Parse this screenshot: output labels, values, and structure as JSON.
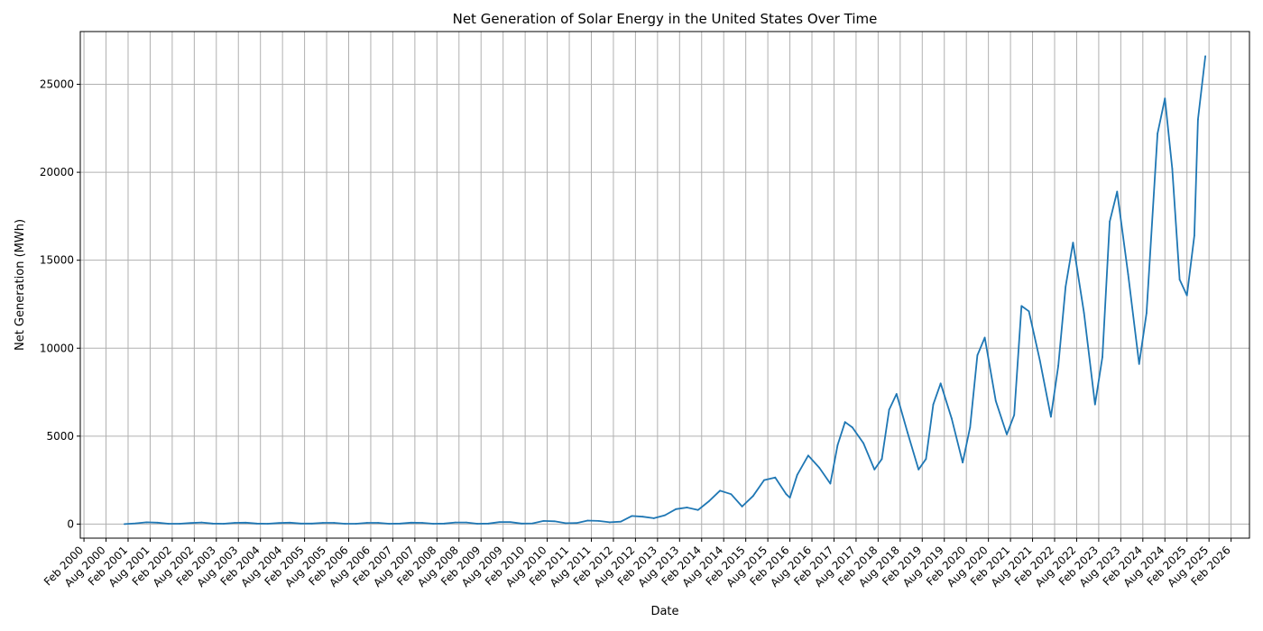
{
  "chart_data": {
    "type": "line",
    "title": "Net Generation of Solar Energy in the United States Over Time",
    "xlabel": "Date",
    "ylabel": "Net Generation (MWh)",
    "xlim": [
      "2000-01",
      "2026-07"
    ],
    "ylim": [
      -800,
      28000
    ],
    "grid": true,
    "color": "#1f77b4",
    "x_ticks": [
      "2000-02",
      "2000-08",
      "2001-02",
      "2001-08",
      "2002-02",
      "2002-08",
      "2003-02",
      "2003-08",
      "2004-02",
      "2004-08",
      "2005-02",
      "2005-08",
      "2006-02",
      "2006-08",
      "2007-02",
      "2007-08",
      "2008-02",
      "2008-08",
      "2009-02",
      "2009-08",
      "2010-02",
      "2010-08",
      "2011-02",
      "2011-08",
      "2012-02",
      "2012-08",
      "2013-02",
      "2013-08",
      "2014-02",
      "2014-08",
      "2015-02",
      "2015-08",
      "2016-02",
      "2016-08",
      "2017-02",
      "2017-08",
      "2018-02",
      "2018-08",
      "2019-02",
      "2019-08",
      "2020-02",
      "2020-08",
      "2021-02",
      "2021-08",
      "2022-02",
      "2022-08",
      "2023-02",
      "2023-08",
      "2024-02",
      "2024-08",
      "2025-02",
      "2025-08",
      "2026-02"
    ],
    "x_tick_labels": [
      "Feb 2000",
      "Aug 2000",
      "Feb 2001",
      "Aug 2001",
      "Feb 2002",
      "Aug 2002",
      "Feb 2003",
      "Aug 2003",
      "Feb 2004",
      "Aug 2004",
      "Feb 2005",
      "Aug 2005",
      "Feb 2006",
      "Aug 2006",
      "Feb 2007",
      "Aug 2007",
      "Feb 2008",
      "Aug 2008",
      "Feb 2009",
      "Aug 2009",
      "Feb 2010",
      "Aug 2010",
      "Feb 2011",
      "Aug 2011",
      "Feb 2012",
      "Aug 2012",
      "Feb 2013",
      "Aug 2013",
      "Feb 2014",
      "Aug 2014",
      "Feb 2015",
      "Aug 2015",
      "Feb 2016",
      "Aug 2016",
      "Feb 2017",
      "Aug 2017",
      "Feb 2018",
      "Aug 2018",
      "Feb 2019",
      "Aug 2019",
      "Feb 2020",
      "Aug 2020",
      "Feb 2021",
      "Aug 2021",
      "Feb 2022",
      "Aug 2022",
      "Feb 2023",
      "Aug 2023",
      "Feb 2024",
      "Aug 2024",
      "Feb 2025",
      "Aug 2025",
      "Feb 2026"
    ],
    "y_ticks": [
      0,
      5000,
      10000,
      15000,
      20000,
      25000
    ],
    "y_tick_labels": [
      "0",
      "5000",
      "10000",
      "15000",
      "20000",
      "25000"
    ],
    "series": [
      {
        "x": [
          "2001-01",
          "2001-04",
          "2001-07",
          "2001-10",
          "2002-01",
          "2002-04",
          "2002-07",
          "2002-10",
          "2003-01",
          "2003-04",
          "2003-07",
          "2003-10",
          "2004-01",
          "2004-04",
          "2004-07",
          "2004-10",
          "2005-01",
          "2005-04",
          "2005-07",
          "2005-10",
          "2006-01",
          "2006-04",
          "2006-07",
          "2006-10",
          "2007-01",
          "2007-04",
          "2007-07",
          "2007-10",
          "2008-01",
          "2008-04",
          "2008-07",
          "2008-10",
          "2009-01",
          "2009-04",
          "2009-07",
          "2009-10",
          "2010-01",
          "2010-04",
          "2010-07",
          "2010-10",
          "2011-01",
          "2011-04",
          "2011-07",
          "2011-10",
          "2012-01",
          "2012-04",
          "2012-07",
          "2012-10",
          "2013-01",
          "2013-04",
          "2013-07",
          "2013-10",
          "2014-01",
          "2014-04",
          "2014-07",
          "2014-10",
          "2015-01",
          "2015-04",
          "2015-07",
          "2015-10",
          "2016-01",
          "2016-02",
          "2016-04",
          "2016-07",
          "2016-10",
          "2017-01",
          "2017-03",
          "2017-05",
          "2017-07",
          "2017-10",
          "2018-01",
          "2018-03",
          "2018-05",
          "2018-07",
          "2018-10",
          "2019-01",
          "2019-03",
          "2019-05",
          "2019-07",
          "2019-10",
          "2020-01",
          "2020-03",
          "2020-05",
          "2020-07",
          "2020-10",
          "2021-01",
          "2021-03",
          "2021-05",
          "2021-07",
          "2021-10",
          "2022-01",
          "2022-03",
          "2022-05",
          "2022-07",
          "2022-10",
          "2023-01",
          "2023-03",
          "2023-05",
          "2023-07",
          "2023-10",
          "2024-01",
          "2024-03",
          "2024-06",
          "2024-08",
          "2024-10",
          "2024-12",
          "2025-02",
          "2025-04",
          "2025-05",
          "2025-07"
        ],
        "y": [
          0,
          40,
          100,
          80,
          20,
          20,
          60,
          90,
          30,
          20,
          70,
          80,
          30,
          20,
          60,
          80,
          30,
          30,
          70,
          70,
          20,
          20,
          70,
          70,
          20,
          30,
          80,
          70,
          20,
          30,
          90,
          90,
          20,
          30,
          110,
          110,
          30,
          40,
          180,
          160,
          50,
          60,
          200,
          180,
          100,
          140,
          460,
          420,
          330,
          500,
          850,
          940,
          800,
          1300,
          1900,
          1700,
          1000,
          1600,
          2500,
          2650,
          1700,
          1500,
          2800,
          3900,
          3200,
          2300,
          4500,
          5800,
          5500,
          4600,
          3100,
          3700,
          6500,
          7400,
          5200,
          3100,
          3700,
          6800,
          8000,
          6000,
          3500,
          5500,
          9600,
          10600,
          7000,
          5100,
          6200,
          12400,
          12100,
          9300,
          6100,
          9000,
          13500,
          16000,
          12000,
          6800,
          9500,
          17200,
          18900,
          14200,
          9100,
          12000,
          22200,
          24200,
          20200,
          13900,
          13000,
          16400,
          23000,
          26600
        ]
      }
    ]
  }
}
